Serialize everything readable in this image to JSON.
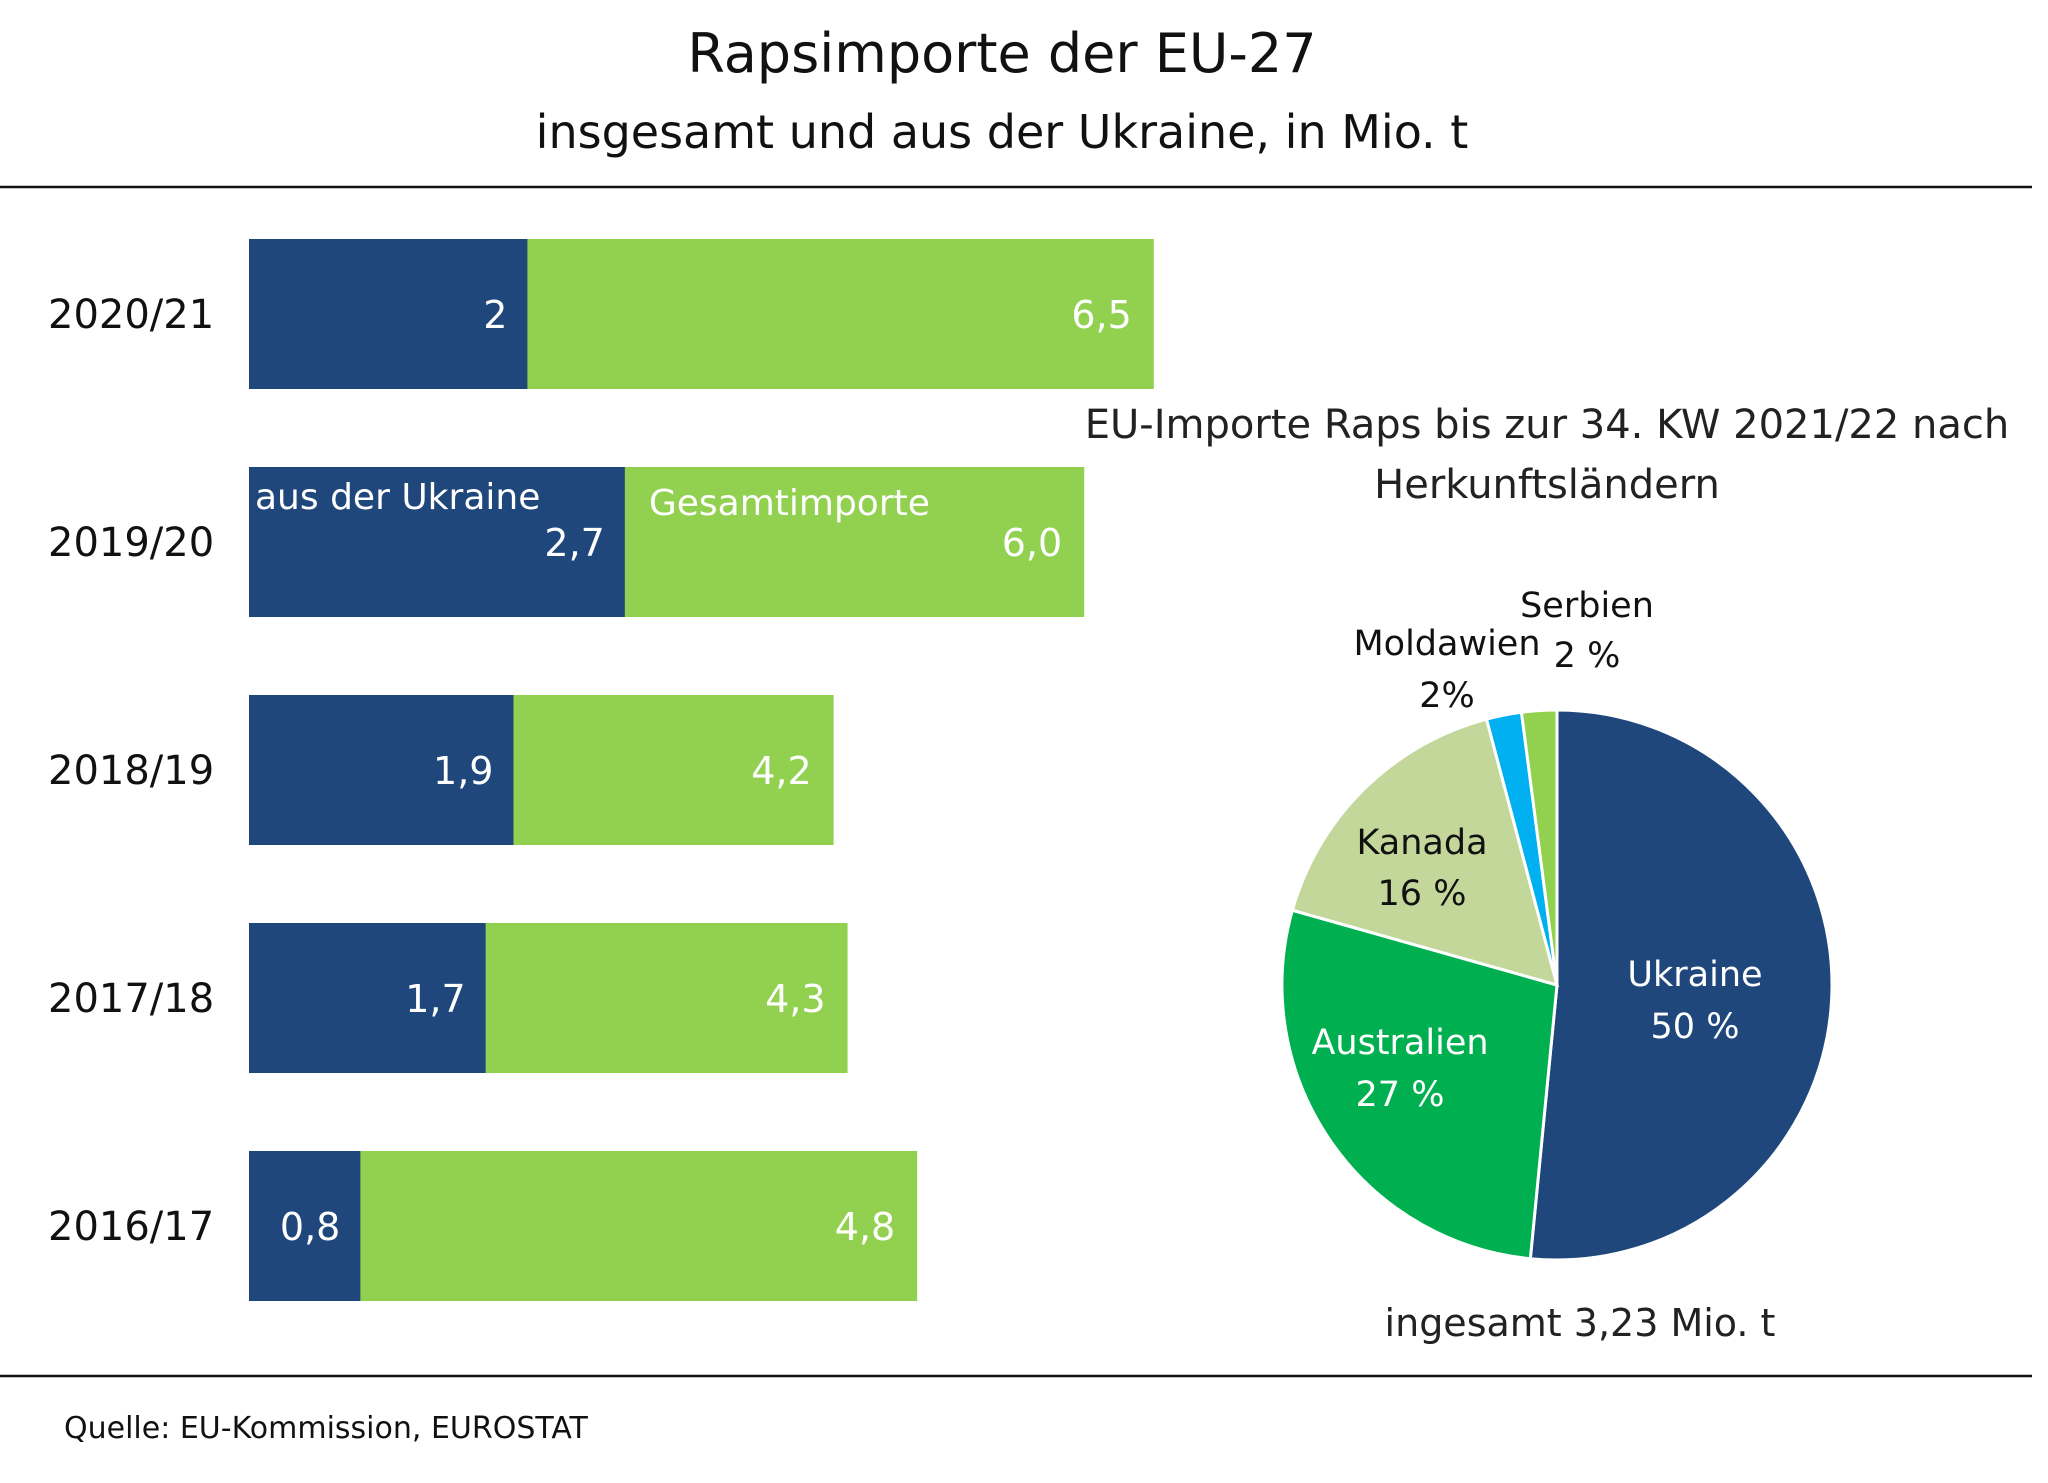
{
  "chart_data": [
    {
      "type": "bar",
      "orientation": "horizontal",
      "title": "Rapsimporte der EU-27",
      "subtitle": "insgesamt und aus der Ukraine, in Mio. t",
      "categories": [
        "2020/21",
        "2019/20",
        "2018/19",
        "2017/18",
        "2016/17"
      ],
      "series": [
        {
          "name": "aus der Ukraine",
          "values": [
            2,
            2.7,
            1.9,
            1.7,
            0.8
          ],
          "labels": [
            "2",
            "2,7",
            "1,9",
            "1,7",
            "0,8"
          ],
          "color": "#1f477b"
        },
        {
          "name": "Gesamtimporte",
          "values": [
            6.5,
            6.0,
            4.2,
            4.3,
            4.8
          ],
          "labels": [
            "6,5",
            "6,0",
            "4,2",
            "4,3",
            "4,8"
          ],
          "color": "#92d050"
        }
      ],
      "overlay": true,
      "xlim": [
        0,
        6.5
      ],
      "grid": false
    },
    {
      "type": "pie",
      "title": "EU-Importe Raps bis zur 34. KW 2021/22 nach Herkunftsländern",
      "title_lines": [
        "EU-Importe Raps bis zur 34. KW 2021/22 nach",
        "Herkunftsländern"
      ],
      "slices": [
        {
          "name": "Ukraine",
          "value": 50,
          "label": "50 %",
          "color": "#1f477b"
        },
        {
          "name": "Australien",
          "value": 27,
          "label": "27 %",
          "color": "#00b050"
        },
        {
          "name": "Kanada",
          "value": 16,
          "label": "16 %",
          "color": "#c4d79b"
        },
        {
          "name": "Moldawien",
          "value": 2,
          "label": "2%",
          "color": "#00b0f0"
        },
        {
          "name": "Serbien",
          "value": 2,
          "label": "2 %",
          "color": "#92d050"
        }
      ],
      "start": "top",
      "direction": "clockwise",
      "total_note": "ingesamt 3,23 Mio. t"
    }
  ],
  "source": "Quelle:  EU-Kommission, EUROSTAT"
}
